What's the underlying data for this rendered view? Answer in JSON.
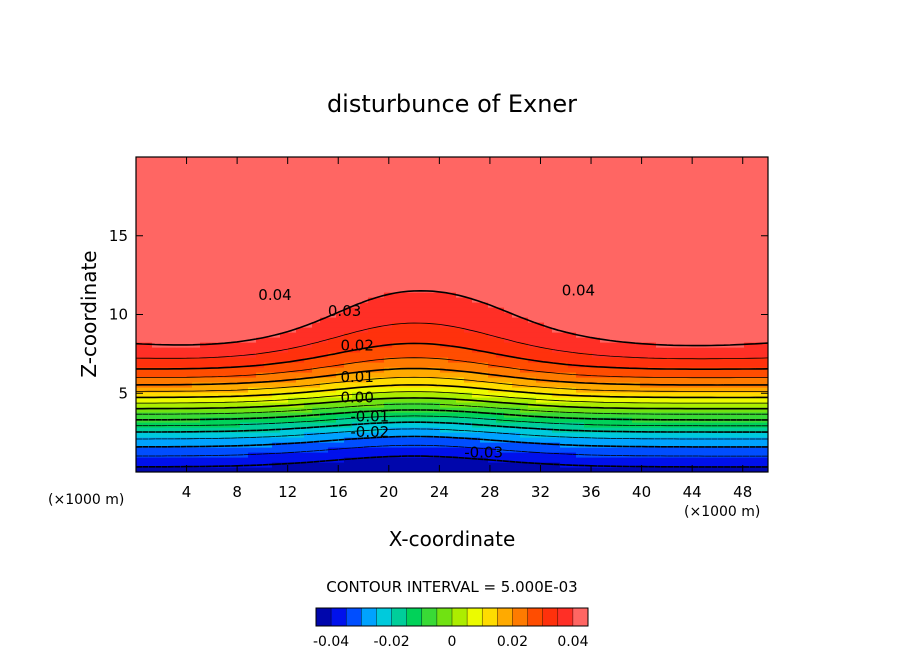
{
  "chart_data": {
    "type": "contour",
    "title": "disturbunce of Exner",
    "xlabel": "X-coordinate",
    "ylabel": "Z-coordinate",
    "x_unit": "(×1000 m)",
    "z_unit": "(×1000 m)",
    "xlim": [
      0,
      50
    ],
    "ylim": [
      0,
      20
    ],
    "x_ticks": [
      4,
      8,
      12,
      16,
      20,
      24,
      28,
      32,
      36,
      40,
      44,
      48
    ],
    "y_ticks": [
      5,
      10,
      15
    ],
    "contour_interval_label": "CONTOUR INTERVAL = 5.000E-03",
    "contour_interval": 0.005,
    "value_range": [
      -0.045,
      0.045
    ],
    "contour_labels": [
      {
        "text": "0.04",
        "x": 11,
        "z": 11.2
      },
      {
        "text": "0.03",
        "x": 16.5,
        "z": 10.2
      },
      {
        "text": "0.02",
        "x": 17.5,
        "z": 8
      },
      {
        "text": "0.01",
        "x": 17.5,
        "z": 6
      },
      {
        "text": "0.00",
        "x": 17.5,
        "z": 4.7
      },
      {
        "text": "-0.01",
        "x": 18.5,
        "z": 3.5
      },
      {
        "text": "-0.02",
        "x": 18.5,
        "z": 2.5
      },
      {
        "text": "-0.03",
        "x": 27.5,
        "z": 1.2
      },
      {
        "text": "0.04",
        "x": 35,
        "z": 11.5
      }
    ],
    "colorbar": {
      "ticks": [
        -0.04,
        -0.02,
        0,
        0.02,
        0.04
      ],
      "tick_labels": [
        "-0.04",
        "-0.02",
        "0",
        "0.02",
        "0.04"
      ]
    }
  }
}
